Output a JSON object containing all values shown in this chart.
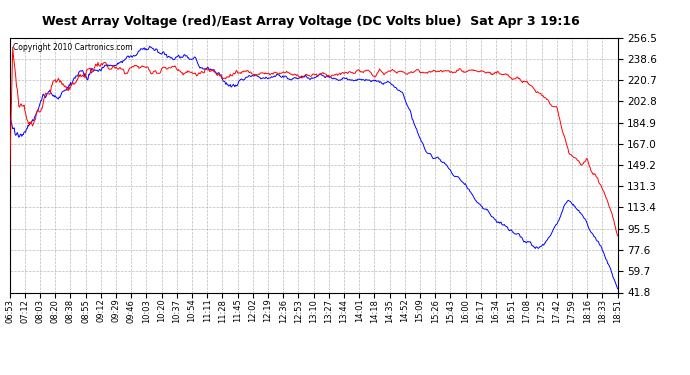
{
  "title": "West Array Voltage (red)/East Array Voltage (DC Volts blue)  Sat Apr 3 19:16",
  "copyright": "Copyright 2010 Cartronics.com",
  "background_color": "#ffffff",
  "plot_bg_color": "#ffffff",
  "grid_color": "#aaaaaa",
  "yticks": [
    41.8,
    59.7,
    77.6,
    95.5,
    113.4,
    131.3,
    149.2,
    167.0,
    184.9,
    202.8,
    220.7,
    238.6,
    256.5
  ],
  "ylim": [
    41.8,
    256.5
  ],
  "xtick_labels": [
    "06:53",
    "07:12",
    "08:03",
    "08:20",
    "08:38",
    "08:55",
    "09:12",
    "09:29",
    "09:46",
    "10:03",
    "10:20",
    "10:37",
    "10:54",
    "11:11",
    "11:28",
    "11:45",
    "12:02",
    "12:19",
    "12:36",
    "12:53",
    "13:10",
    "13:27",
    "13:44",
    "14:01",
    "14:18",
    "14:35",
    "14:52",
    "15:09",
    "15:26",
    "15:43",
    "16:00",
    "16:17",
    "16:34",
    "16:51",
    "17:08",
    "17:25",
    "17:42",
    "17:59",
    "18:16",
    "18:33",
    "18:51"
  ],
  "red_color": "#ff0000",
  "blue_color": "#0000ff",
  "line_width": 0.7
}
